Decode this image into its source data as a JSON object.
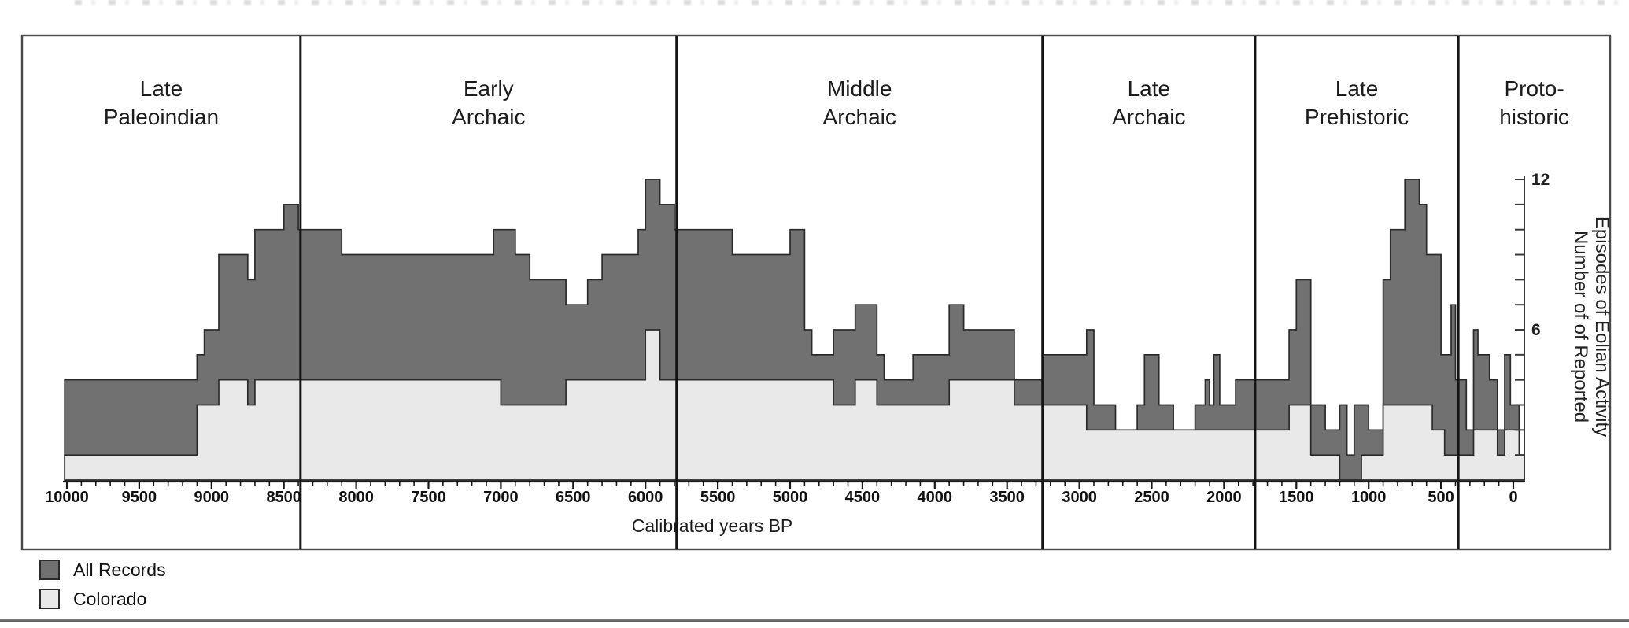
{
  "figure": {
    "description_note": "Step-area chart of reported eolian activity episodes through time with archaeological period panels"
  },
  "legend": {
    "items": [
      {
        "label": "All Records",
        "swatch_color": "#717171"
      },
      {
        "label": "Colorado",
        "swatch_color": "#e9e9e9"
      }
    ]
  },
  "chart_data": {
    "type": "area",
    "subtype": "step-histogram",
    "title": "",
    "xlabel": "Calibrated years BP",
    "ylabel_line1": "Number of of Reported",
    "ylabel_line2": "Episodes of Eolian Activity",
    "x_axis": {
      "direction": "descending",
      "start_year": 10015,
      "end_year": -76,
      "major_tick_interval": 500,
      "minor_tick_interval": 100,
      "major_tick_values": [
        10000,
        9500,
        9000,
        8500,
        8000,
        7500,
        7000,
        6500,
        6000,
        5500,
        5000,
        4500,
        4000,
        3500,
        3000,
        2500,
        2000,
        1500,
        1000,
        500,
        0
      ]
    },
    "y_axis": {
      "min": 0,
      "max": 12,
      "tick_interval": 1,
      "labeled_ticks": [
        12,
        6
      ],
      "side": "right"
    },
    "grid": "off",
    "legend_position": "bottom-left-outside",
    "periods": [
      {
        "line1": "Late",
        "line2": "Paleoindian"
      },
      {
        "line1": "Early",
        "line2": "Archaic"
      },
      {
        "line1": "Middle",
        "line2": "Archaic"
      },
      {
        "line1": "Late",
        "line2": "Archaic"
      },
      {
        "line1": "Late",
        "line2": "Prehistoric"
      },
      {
        "line1": "Proto-",
        "line2": "historic"
      }
    ],
    "period_boundaries_bp": [
      8385,
      5785,
      3255,
      1785,
      380
    ],
    "series": [
      {
        "name": "All Records",
        "color": "#717171",
        "outline": "#2b2b2b",
        "steps_year_value": [
          [
            10015,
            4
          ],
          [
            9100,
            5
          ],
          [
            9050,
            6
          ],
          [
            8950,
            9
          ],
          [
            8750,
            8
          ],
          [
            8700,
            10
          ],
          [
            8500,
            11
          ],
          [
            8400,
            10
          ],
          [
            8100,
            9
          ],
          [
            7050,
            10
          ],
          [
            6900,
            9
          ],
          [
            6800,
            8
          ],
          [
            6550,
            7
          ],
          [
            6400,
            8
          ],
          [
            6300,
            9
          ],
          [
            6050,
            10
          ],
          [
            6000,
            12
          ],
          [
            5900,
            11
          ],
          [
            5800,
            10
          ],
          [
            5400,
            9
          ],
          [
            5000,
            10
          ],
          [
            4900,
            6
          ],
          [
            4850,
            5
          ],
          [
            4700,
            6
          ],
          [
            4550,
            7
          ],
          [
            4400,
            5
          ],
          [
            4350,
            4
          ],
          [
            4150,
            5
          ],
          [
            3900,
            7
          ],
          [
            3800,
            6
          ],
          [
            3450,
            4
          ],
          [
            3250,
            5
          ],
          [
            2950,
            6
          ],
          [
            2900,
            3
          ],
          [
            2750,
            2
          ],
          [
            2600,
            3
          ],
          [
            2550,
            5
          ],
          [
            2450,
            3
          ],
          [
            2350,
            2
          ],
          [
            2200,
            3
          ],
          [
            2130,
            4
          ],
          [
            2100,
            3
          ],
          [
            2070,
            5
          ],
          [
            2030,
            3
          ],
          [
            1920,
            4
          ],
          [
            1550,
            6
          ],
          [
            1500,
            8
          ],
          [
            1400,
            3
          ],
          [
            1300,
            2
          ],
          [
            1200,
            3
          ],
          [
            1150,
            1
          ],
          [
            1100,
            3
          ],
          [
            1000,
            2
          ],
          [
            900,
            8
          ],
          [
            850,
            10
          ],
          [
            750,
            12
          ],
          [
            650,
            11
          ],
          [
            600,
            9
          ],
          [
            500,
            5
          ],
          [
            430,
            7
          ],
          [
            400,
            4
          ],
          [
            325,
            2
          ],
          [
            275,
            6
          ],
          [
            245,
            5
          ],
          [
            165,
            4
          ],
          [
            110,
            2
          ],
          [
            60,
            5
          ],
          [
            20,
            3
          ],
          [
            -40,
            1
          ]
        ]
      },
      {
        "name": "Colorado",
        "color": "#e9e9e9",
        "outline": "#2b2b2b",
        "steps_year_value": [
          [
            10015,
            1
          ],
          [
            9100,
            3
          ],
          [
            8950,
            4
          ],
          [
            8750,
            3
          ],
          [
            8700,
            4
          ],
          [
            7000,
            3
          ],
          [
            6550,
            4
          ],
          [
            6000,
            6
          ],
          [
            5900,
            4
          ],
          [
            4700,
            3
          ],
          [
            4550,
            4
          ],
          [
            4400,
            3
          ],
          [
            3900,
            4
          ],
          [
            3450,
            3
          ],
          [
            2950,
            2
          ],
          [
            1550,
            3
          ],
          [
            1400,
            1
          ],
          [
            1200,
            0
          ],
          [
            1050,
            1
          ],
          [
            900,
            3
          ],
          [
            560,
            2
          ],
          [
            475,
            1
          ],
          [
            275,
            2
          ],
          [
            110,
            1
          ],
          [
            60,
            2
          ],
          [
            -40,
            1
          ]
        ]
      }
    ]
  }
}
